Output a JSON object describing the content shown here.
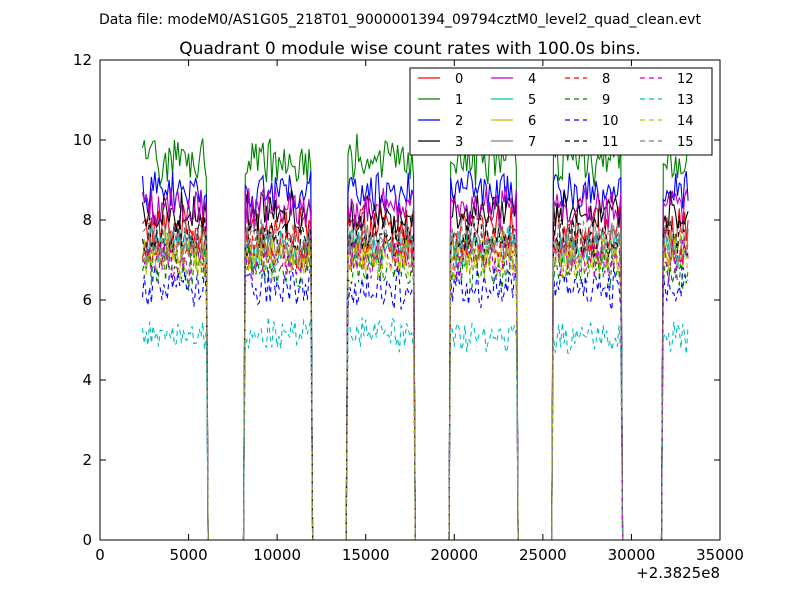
{
  "suptitle": "Data file: modeM0/AS1G05_218T01_9000001394_09794cztM0_level2_quad_clean.evt",
  "chart_data": {
    "type": "line",
    "title": "Quadrant 0 module wise count rates with 100.0s bins.",
    "xlabel": "",
    "ylabel": "",
    "x_offset_label": "+2.3825e8",
    "xlim": [
      0,
      35000
    ],
    "ylim": [
      0,
      12
    ],
    "x_ticks": [
      "0",
      "5000",
      "10000",
      "15000",
      "20000",
      "25000",
      "30000",
      "35000"
    ],
    "y_ticks": [
      "0",
      "2",
      "4",
      "6",
      "8",
      "10",
      "12"
    ],
    "legend_location": "top-right",
    "x_start": 2400,
    "x_step": 100,
    "sample_count": 310,
    "on_intervals": [
      [
        2400,
        6000
      ],
      [
        8200,
        11900
      ],
      [
        14000,
        17700
      ],
      [
        19800,
        23500
      ],
      [
        25600,
        29400
      ],
      [
        31800,
        33200
      ]
    ],
    "on_level": 1.0,
    "segment_edges": [
      {
        "x": 6100,
        "level": 0.0
      },
      {
        "x": 8100,
        "level": 0.0
      },
      {
        "x": 12000,
        "level": 0.0
      },
      {
        "x": 13900,
        "level": 0.0
      },
      {
        "x": 17800,
        "level": 0.0
      },
      {
        "x": 19700,
        "level": 0.0
      },
      {
        "x": 23600,
        "level": 0.0
      },
      {
        "x": 25500,
        "level": 0.0
      },
      {
        "x": 29500,
        "level": 0.0
      },
      {
        "x": 31700,
        "level": 0.0
      }
    ],
    "series": [
      {
        "name": "0",
        "color": "#ff0000",
        "dash": "solid",
        "mean": 7.8
      },
      {
        "name": "1",
        "color": "#008000",
        "dash": "solid",
        "mean": 9.5
      },
      {
        "name": "2",
        "color": "#0000ff",
        "dash": "solid",
        "mean": 8.7
      },
      {
        "name": "3",
        "color": "#000000",
        "dash": "solid",
        "mean": 8.2
      },
      {
        "name": "4",
        "color": "#bf00bf",
        "dash": "solid",
        "mean": 8.3
      },
      {
        "name": "5",
        "color": "#00bfbf",
        "dash": "solid",
        "mean": 7.3
      },
      {
        "name": "6",
        "color": "#bfbf00",
        "dash": "solid",
        "mean": 7.2
      },
      {
        "name": "7",
        "color": "#808080",
        "dash": "solid",
        "mean": 7.4
      },
      {
        "name": "8",
        "color": "#ff0000",
        "dash": "dashed",
        "mean": 7.3
      },
      {
        "name": "9",
        "color": "#008000",
        "dash": "dashed",
        "mean": 6.8
      },
      {
        "name": "10",
        "color": "#0000ff",
        "dash": "dashed",
        "mean": 6.3
      },
      {
        "name": "11",
        "color": "#000000",
        "dash": "dashed",
        "mean": 7.6
      },
      {
        "name": "12",
        "color": "#bf00bf",
        "dash": "dashed",
        "mean": 7.0
      },
      {
        "name": "13",
        "color": "#00bfbf",
        "dash": "dashed",
        "mean": 5.1
      },
      {
        "name": "14",
        "color": "#bfbf00",
        "dash": "dashed",
        "mean": 7.0
      },
      {
        "name": "15",
        "color": "#808080",
        "dash": "dashed",
        "mean": 7.5
      }
    ]
  }
}
